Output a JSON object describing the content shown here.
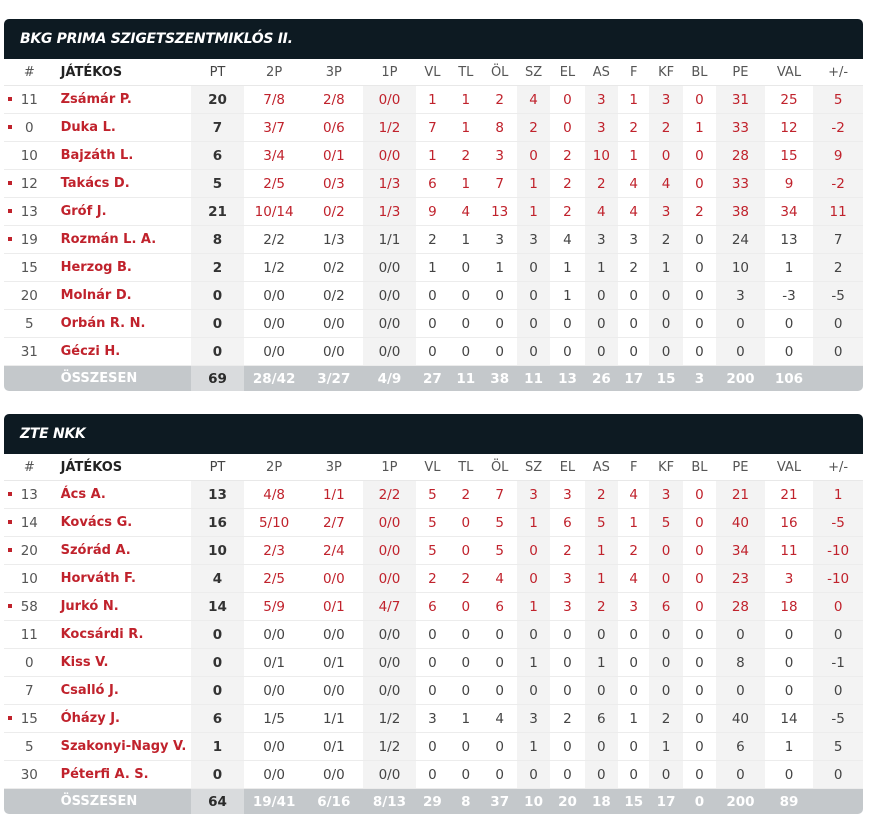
{
  "columns": {
    "num": "#",
    "player": "JÁTÉKOS",
    "pt": "PT",
    "p2": "2P",
    "p3": "3P",
    "p1": "1P",
    "vl": "VL",
    "tl": "TL",
    "ol": "ÖL",
    "sz": "SZ",
    "el": "EL",
    "as": "AS",
    "f": "F",
    "kf": "KF",
    "bl": "BL",
    "pe": "PE",
    "val": "VAL",
    "pm": "+/-"
  },
  "stat_keys": [
    "p2",
    "p3",
    "p1",
    "vl",
    "tl",
    "ol",
    "sz",
    "el",
    "as",
    "f",
    "kf",
    "bl",
    "pe",
    "val",
    "pm"
  ],
  "colors": {
    "header_bg": "#0d1a22",
    "accent_red": "#c0222c",
    "total_bg": "#c4c8cb"
  },
  "teams": [
    {
      "name": "BKG PRIMA SZIGETSZENTMIKLÓS II.",
      "players": [
        {
          "starter": true,
          "num": "11",
          "name": "Zsámár P.",
          "pt": "20",
          "p2": "7/8",
          "p3": "2/8",
          "p1": "0/0",
          "vl": "1",
          "tl": "1",
          "ol": "2",
          "sz": "4",
          "el": "0",
          "as": "3",
          "f": "1",
          "kf": "3",
          "bl": "0",
          "pe": "31",
          "val": "25",
          "pm": "5",
          "hl": true
        },
        {
          "starter": true,
          "num": "0",
          "name": "Duka L.",
          "pt": "7",
          "p2": "3/7",
          "p3": "0/6",
          "p1": "1/2",
          "vl": "7",
          "tl": "1",
          "ol": "8",
          "sz": "2",
          "el": "0",
          "as": "3",
          "f": "2",
          "kf": "2",
          "bl": "1",
          "pe": "33",
          "val": "12",
          "pm": "-2",
          "hl": true
        },
        {
          "starter": false,
          "num": "10",
          "name": "Bajzáth L.",
          "pt": "6",
          "p2": "3/4",
          "p3": "0/1",
          "p1": "0/0",
          "vl": "1",
          "tl": "2",
          "ol": "3",
          "sz": "0",
          "el": "2",
          "as": "10",
          "f": "1",
          "kf": "0",
          "bl": "0",
          "pe": "28",
          "val": "15",
          "pm": "9",
          "hl": true
        },
        {
          "starter": true,
          "num": "12",
          "name": "Takács D.",
          "pt": "5",
          "p2": "2/5",
          "p3": "0/3",
          "p1": "1/3",
          "vl": "6",
          "tl": "1",
          "ol": "7",
          "sz": "1",
          "el": "2",
          "as": "2",
          "f": "4",
          "kf": "4",
          "bl": "0",
          "pe": "33",
          "val": "9",
          "pm": "-2",
          "hl": true
        },
        {
          "starter": true,
          "num": "13",
          "name": "Gróf J.",
          "pt": "21",
          "p2": "10/14",
          "p3": "0/2",
          "p1": "1/3",
          "vl": "9",
          "tl": "4",
          "ol": "13",
          "sz": "1",
          "el": "2",
          "as": "4",
          "f": "4",
          "kf": "3",
          "bl": "2",
          "pe": "38",
          "val": "34",
          "pm": "11",
          "hl": true
        },
        {
          "starter": true,
          "num": "19",
          "name": "Rozmán L. A.",
          "pt": "8",
          "p2": "2/2",
          "p3": "1/3",
          "p1": "1/1",
          "vl": "2",
          "tl": "1",
          "ol": "3",
          "sz": "3",
          "el": "4",
          "as": "3",
          "f": "3",
          "kf": "2",
          "bl": "0",
          "pe": "24",
          "val": "13",
          "pm": "7",
          "hl": false
        },
        {
          "starter": false,
          "num": "15",
          "name": "Herzog B.",
          "pt": "2",
          "p2": "1/2",
          "p3": "0/2",
          "p1": "0/0",
          "vl": "1",
          "tl": "0",
          "ol": "1",
          "sz": "0",
          "el": "1",
          "as": "1",
          "f": "2",
          "kf": "1",
          "bl": "0",
          "pe": "10",
          "val": "1",
          "pm": "2",
          "hl": false
        },
        {
          "starter": false,
          "num": "20",
          "name": "Molnár D.",
          "pt": "0",
          "p2": "0/0",
          "p3": "0/2",
          "p1": "0/0",
          "vl": "0",
          "tl": "0",
          "ol": "0",
          "sz": "0",
          "el": "1",
          "as": "0",
          "f": "0",
          "kf": "0",
          "bl": "0",
          "pe": "3",
          "val": "-3",
          "pm": "-5",
          "hl": false
        },
        {
          "starter": false,
          "num": "5",
          "name": "Orbán R. N.",
          "pt": "0",
          "p2": "0/0",
          "p3": "0/0",
          "p1": "0/0",
          "vl": "0",
          "tl": "0",
          "ol": "0",
          "sz": "0",
          "el": "0",
          "as": "0",
          "f": "0",
          "kf": "0",
          "bl": "0",
          "pe": "0",
          "val": "0",
          "pm": "0",
          "hl": false
        },
        {
          "starter": false,
          "num": "31",
          "name": "Géczi H.",
          "pt": "0",
          "p2": "0/0",
          "p3": "0/0",
          "p1": "0/0",
          "vl": "0",
          "tl": "0",
          "ol": "0",
          "sz": "0",
          "el": "0",
          "as": "0",
          "f": "0",
          "kf": "0",
          "bl": "0",
          "pe": "0",
          "val": "0",
          "pm": "0",
          "hl": false
        }
      ],
      "total": {
        "label": "ÖSSZESEN",
        "pt": "69",
        "p2": "28/42",
        "p3": "3/27",
        "p1": "4/9",
        "vl": "27",
        "tl": "11",
        "ol": "38",
        "sz": "11",
        "el": "13",
        "as": "26",
        "f": "17",
        "kf": "15",
        "bl": "3",
        "pe": "200",
        "val": "106",
        "pm": ""
      }
    },
    {
      "name": "ZTE NKK",
      "players": [
        {
          "starter": true,
          "num": "13",
          "name": "Ács A.",
          "pt": "13",
          "p2": "4/8",
          "p3": "1/1",
          "p1": "2/2",
          "vl": "5",
          "tl": "2",
          "ol": "7",
          "sz": "3",
          "el": "3",
          "as": "2",
          "f": "4",
          "kf": "3",
          "bl": "0",
          "pe": "21",
          "val": "21",
          "pm": "1",
          "hl": true
        },
        {
          "starter": true,
          "num": "14",
          "name": "Kovács G.",
          "pt": "16",
          "p2": "5/10",
          "p3": "2/7",
          "p1": "0/0",
          "vl": "5",
          "tl": "0",
          "ol": "5",
          "sz": "1",
          "el": "6",
          "as": "5",
          "f": "1",
          "kf": "5",
          "bl": "0",
          "pe": "40",
          "val": "16",
          "pm": "-5",
          "hl": true
        },
        {
          "starter": true,
          "num": "20",
          "name": "Szórád A.",
          "pt": "10",
          "p2": "2/3",
          "p3": "2/4",
          "p1": "0/0",
          "vl": "5",
          "tl": "0",
          "ol": "5",
          "sz": "0",
          "el": "2",
          "as": "1",
          "f": "2",
          "kf": "0",
          "bl": "0",
          "pe": "34",
          "val": "11",
          "pm": "-10",
          "hl": true
        },
        {
          "starter": false,
          "num": "10",
          "name": "Horváth F.",
          "pt": "4",
          "p2": "2/5",
          "p3": "0/0",
          "p1": "0/0",
          "vl": "2",
          "tl": "2",
          "ol": "4",
          "sz": "0",
          "el": "3",
          "as": "1",
          "f": "4",
          "kf": "0",
          "bl": "0",
          "pe": "23",
          "val": "3",
          "pm": "-10",
          "hl": true
        },
        {
          "starter": true,
          "num": "58",
          "name": "Jurkó N.",
          "pt": "14",
          "p2": "5/9",
          "p3": "0/1",
          "p1": "4/7",
          "vl": "6",
          "tl": "0",
          "ol": "6",
          "sz": "1",
          "el": "3",
          "as": "2",
          "f": "3",
          "kf": "6",
          "bl": "0",
          "pe": "28",
          "val": "18",
          "pm": "0",
          "hl": true
        },
        {
          "starter": false,
          "num": "11",
          "name": "Kocsárdi R.",
          "pt": "0",
          "p2": "0/0",
          "p3": "0/0",
          "p1": "0/0",
          "vl": "0",
          "tl": "0",
          "ol": "0",
          "sz": "0",
          "el": "0",
          "as": "0",
          "f": "0",
          "kf": "0",
          "bl": "0",
          "pe": "0",
          "val": "0",
          "pm": "0",
          "hl": false
        },
        {
          "starter": false,
          "num": "0",
          "name": "Kiss V.",
          "pt": "0",
          "p2": "0/1",
          "p3": "0/1",
          "p1": "0/0",
          "vl": "0",
          "tl": "0",
          "ol": "0",
          "sz": "1",
          "el": "0",
          "as": "1",
          "f": "0",
          "kf": "0",
          "bl": "0",
          "pe": "8",
          "val": "0",
          "pm": "-1",
          "hl": false
        },
        {
          "starter": false,
          "num": "7",
          "name": "Csalló J.",
          "pt": "0",
          "p2": "0/0",
          "p3": "0/0",
          "p1": "0/0",
          "vl": "0",
          "tl": "0",
          "ol": "0",
          "sz": "0",
          "el": "0",
          "as": "0",
          "f": "0",
          "kf": "0",
          "bl": "0",
          "pe": "0",
          "val": "0",
          "pm": "0",
          "hl": false
        },
        {
          "starter": true,
          "num": "15",
          "name": "Óházy J.",
          "pt": "6",
          "p2": "1/5",
          "p3": "1/1",
          "p1": "1/2",
          "vl": "3",
          "tl": "1",
          "ol": "4",
          "sz": "3",
          "el": "2",
          "as": "6",
          "f": "1",
          "kf": "2",
          "bl": "0",
          "pe": "40",
          "val": "14",
          "pm": "-5",
          "hl": false
        },
        {
          "starter": false,
          "num": "5",
          "name": "Szakonyi-Nagy V.",
          "pt": "1",
          "p2": "0/0",
          "p3": "0/1",
          "p1": "1/2",
          "vl": "0",
          "tl": "0",
          "ol": "0",
          "sz": "1",
          "el": "0",
          "as": "0",
          "f": "0",
          "kf": "1",
          "bl": "0",
          "pe": "6",
          "val": "1",
          "pm": "5",
          "hl": false
        },
        {
          "starter": false,
          "num": "30",
          "name": "Péterfi A. S.",
          "pt": "0",
          "p2": "0/0",
          "p3": "0/0",
          "p1": "0/0",
          "vl": "0",
          "tl": "0",
          "ol": "0",
          "sz": "0",
          "el": "0",
          "as": "0",
          "f": "0",
          "kf": "0",
          "bl": "0",
          "pe": "0",
          "val": "0",
          "pm": "0",
          "hl": false
        }
      ],
      "total": {
        "label": "ÖSSZESEN",
        "pt": "64",
        "p2": "19/41",
        "p3": "6/16",
        "p1": "8/13",
        "vl": "29",
        "tl": "8",
        "ol": "37",
        "sz": "10",
        "el": "20",
        "as": "18",
        "f": "15",
        "kf": "17",
        "bl": "0",
        "pe": "200",
        "val": "89",
        "pm": ""
      }
    }
  ]
}
